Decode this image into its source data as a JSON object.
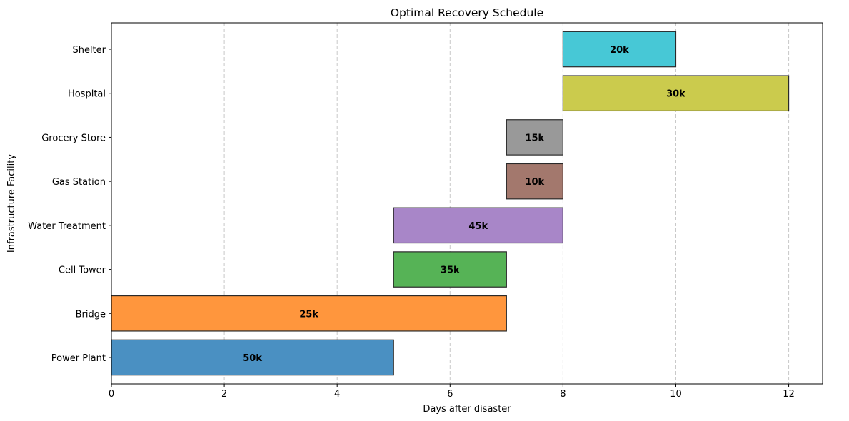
{
  "chart_data": {
    "type": "bar",
    "orientation": "horizontal",
    "subtype": "gantt",
    "title": "Optimal Recovery Schedule",
    "xlabel": "Days after disaster",
    "ylabel": "Infrastructure Facility",
    "xlim": [
      0,
      12.6
    ],
    "xticks": [
      0,
      2,
      4,
      6,
      8,
      10,
      12
    ],
    "grid": "x-dashed",
    "tasks": [
      {
        "facility": "Power Plant",
        "start": 0,
        "end": 5,
        "label": "50k",
        "color": "#4a90c2"
      },
      {
        "facility": "Bridge",
        "start": 0,
        "end": 7,
        "label": "25k",
        "color": "#ff963d"
      },
      {
        "facility": "Cell Tower",
        "start": 5,
        "end": 7,
        "label": "35k",
        "color": "#56b356"
      },
      {
        "facility": "Water Treatment",
        "start": 5,
        "end": 8,
        "label": "45k",
        "color": "#a886c8"
      },
      {
        "facility": "Gas Station",
        "start": 7,
        "end": 8,
        "label": "10k",
        "color": "#a3786d"
      },
      {
        "facility": "Grocery Store",
        "start": 7,
        "end": 8,
        "label": "15k",
        "color": "#999999"
      },
      {
        "facility": "Hospital",
        "start": 8,
        "end": 12,
        "label": "30k",
        "color": "#cbcb4d"
      },
      {
        "facility": "Shelter",
        "start": 8,
        "end": 10,
        "label": "20k",
        "color": "#47c8d6"
      }
    ]
  }
}
